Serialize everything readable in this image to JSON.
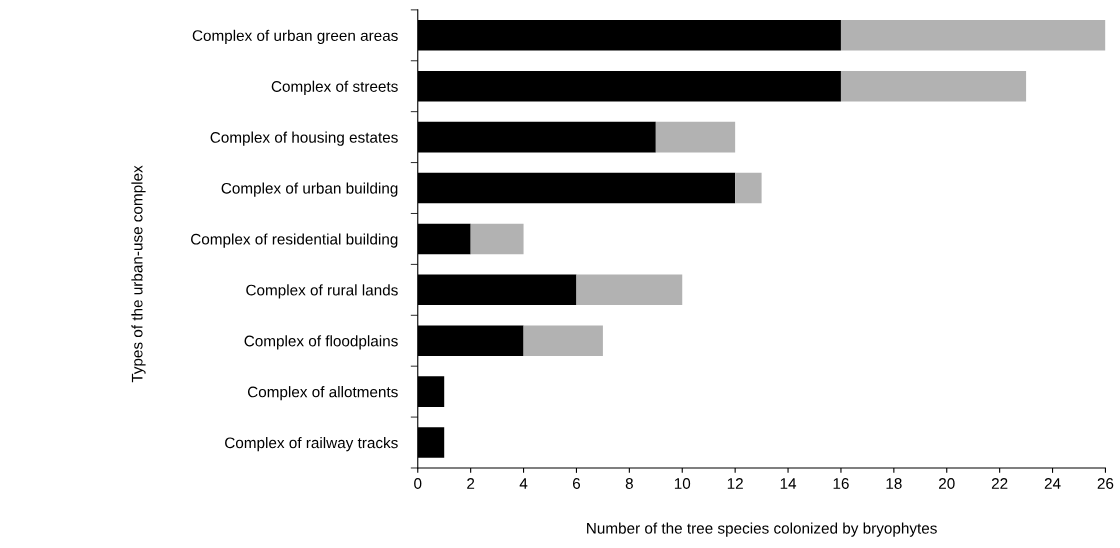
{
  "chart_data": {
    "type": "bar",
    "orientation": "horizontal",
    "stacked": true,
    "categories": [
      "Complex of urban green areas",
      "Complex of streets",
      "Complex of housing estates",
      "Complex of urban building",
      "Complex of residential building",
      "Complex of rural lands",
      "Complex of floodplains",
      "Complex of allotments",
      "Complex of railway tracks"
    ],
    "series": [
      {
        "color": "#000000",
        "values": [
          16,
          16,
          9,
          12,
          2,
          6,
          4,
          1,
          1
        ]
      },
      {
        "color": "#b2b2b2",
        "values": [
          10,
          7,
          3,
          1,
          2,
          4,
          3,
          null,
          null
        ]
      }
    ],
    "xlabel": "Number of the tree species colonized by bryophytes",
    "ylabel": "Types of the urban-use complex",
    "xlim": [
      0,
      26
    ],
    "xticks": [
      0,
      2,
      4,
      6,
      8,
      10,
      12,
      14,
      16,
      18,
      20,
      22,
      24,
      26
    ],
    "grid": false,
    "legend": false
  }
}
